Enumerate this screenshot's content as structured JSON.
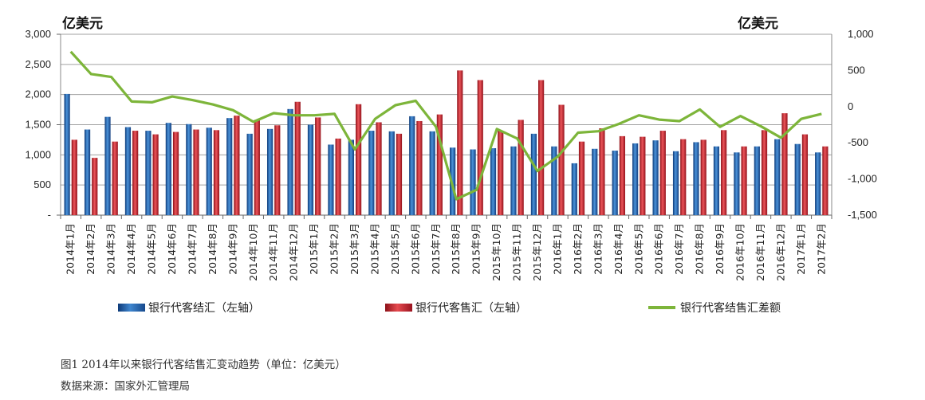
{
  "unit_left": "亿美元",
  "unit_right": "亿美元",
  "caption_line1": "图1   2014年以来银行代客结售汇变动趋势（单位：亿美元）",
  "caption_line2": "数据来源：国家外汇管理局",
  "colors": {
    "settlement": "#2060a8",
    "sale": "#c8202a",
    "diff": "#7db53a",
    "grid": "#a0a0a0"
  },
  "chart_data": {
    "type": "bar",
    "categories": [
      "2014年1月",
      "2014年2月",
      "2014年3月",
      "2014年4月",
      "2014年5月",
      "2014年6月",
      "2014年7月",
      "2014年8月",
      "2014年9月",
      "2014年10月",
      "2014年11月",
      "2014年12月",
      "2015年1月",
      "2015年2月",
      "2015年3月",
      "2015年4月",
      "2015年5月",
      "2015年6月",
      "2015年7月",
      "2015年8月",
      "2015年9月",
      "2015年10月",
      "2015年11月",
      "2015年12月",
      "2016年1月",
      "2016年2月",
      "2016年3月",
      "2016年4月",
      "2016年5月",
      "2016年6月",
      "2016年7月",
      "2016年8月",
      "2016年9月",
      "2016年10月",
      "2016年11月",
      "2016年12月",
      "2017年1月",
      "2017年2月"
    ],
    "series": [
      {
        "name": "银行代客结汇（左轴）",
        "axis": "left",
        "values": [
          2010,
          1420,
          1630,
          1460,
          1400,
          1530,
          1510,
          1450,
          1610,
          1350,
          1430,
          1760,
          1500,
          1170,
          1250,
          1400,
          1390,
          1640,
          1390,
          1120,
          1090,
          1110,
          1140,
          1350,
          1140,
          860,
          1100,
          1070,
          1190,
          1240,
          1060,
          1210,
          1140,
          1040,
          1140,
          1260,
          1180,
          1040
        ]
      },
      {
        "name": "银行代客售汇（左轴）",
        "axis": "left",
        "values": [
          1250,
          950,
          1220,
          1400,
          1340,
          1380,
          1420,
          1410,
          1650,
          1580,
          1490,
          1880,
          1620,
          1270,
          1840,
          1540,
          1350,
          1560,
          1670,
          2400,
          2240,
          1400,
          1580,
          2240,
          1830,
          1220,
          1440,
          1310,
          1300,
          1400,
          1260,
          1250,
          1410,
          1140,
          1410,
          1690,
          1340,
          1140
        ]
      },
      {
        "name": "银行代客结售汇差额",
        "axis": "right",
        "type": "line",
        "values": [
          760,
          450,
          410,
          70,
          60,
          140,
          90,
          30,
          -50,
          -210,
          -90,
          -120,
          -120,
          -100,
          -590,
          -170,
          20,
          80,
          -280,
          -1280,
          -1150,
          -310,
          -440,
          -890,
          -690,
          -360,
          -340,
          -240,
          -120,
          -180,
          -200,
          -40,
          -280,
          -130,
          -270,
          -430,
          -170,
          -100
        ]
      }
    ],
    "left_axis": {
      "ylim": [
        0,
        3000
      ],
      "ticks": [
        "-",
        "500",
        "1,000",
        "1,500",
        "2,000",
        "2,500",
        "3,000"
      ]
    },
    "right_axis": {
      "ylim": [
        -1500,
        1000
      ],
      "ticks": [
        "-1,500",
        "-1,000",
        "-500",
        "0",
        "500",
        "1,000"
      ]
    },
    "grid": true,
    "legend_position": "bottom"
  }
}
